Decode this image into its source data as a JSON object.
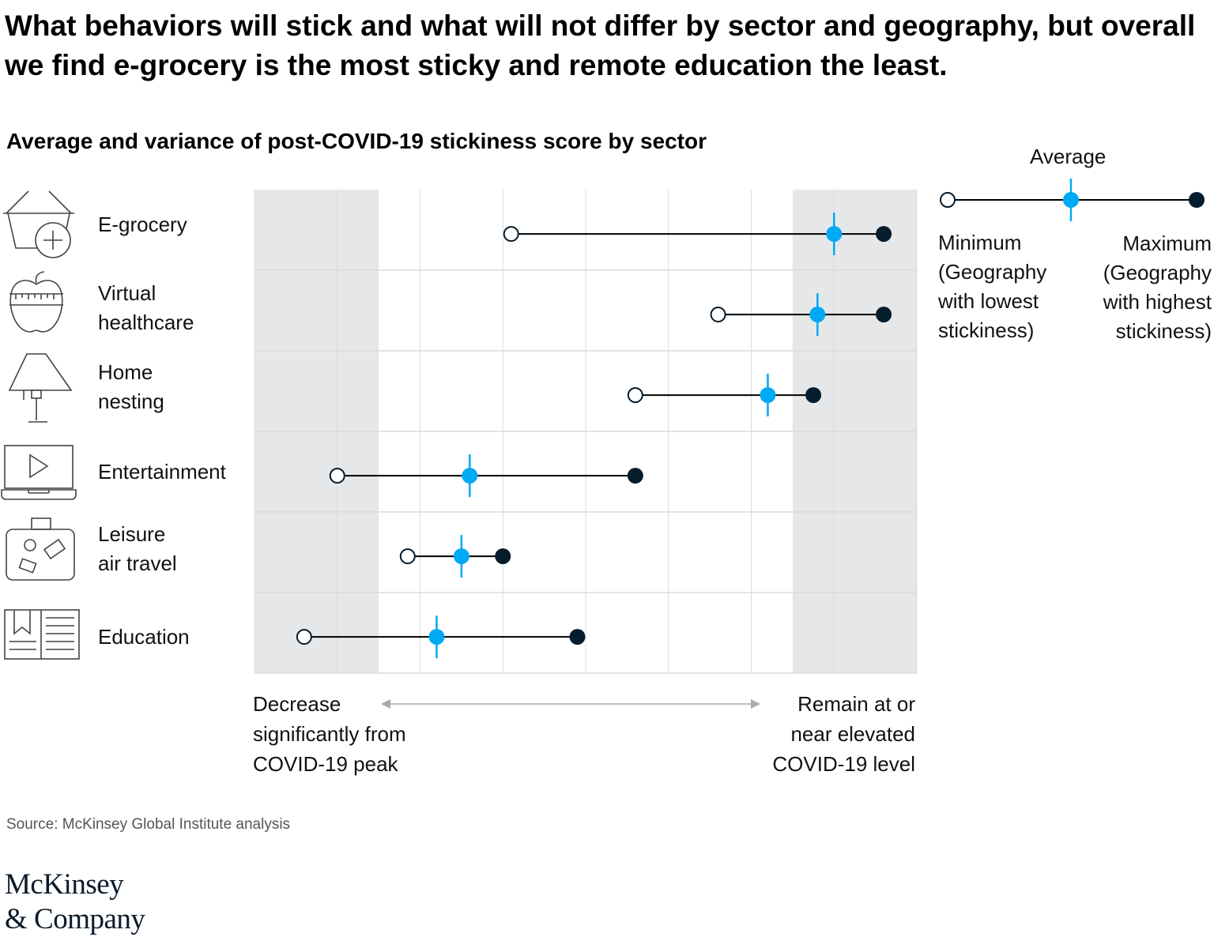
{
  "headline": "What behaviors will stick and what will not differ by sector and geography, but overall we find e-grocery is the most sticky and remote education the least.",
  "chart_data": {
    "type": "dot-range",
    "title": "Average and variance of post-COVID-19 stickiness score by sector",
    "categories": [
      "E-grocery",
      "Virtual healthcare",
      "Home nesting",
      "Entertainment",
      "Leisure air travel",
      "Education"
    ],
    "category_lines": [
      [
        "E-grocery"
      ],
      [
        "Virtual",
        "healthcare"
      ],
      [
        "Home",
        "nesting"
      ],
      [
        "Entertainment"
      ],
      [
        "Leisure",
        "air travel"
      ],
      [
        "Education"
      ]
    ],
    "series": [
      {
        "name": "Minimum (Geography with lowest stickiness)",
        "values": [
          3.1,
          5.6,
          4.6,
          1.0,
          1.85,
          0.6
        ]
      },
      {
        "name": "Average",
        "values": [
          7.0,
          6.8,
          6.2,
          2.6,
          2.5,
          2.2
        ]
      },
      {
        "name": "Maximum (Geography with highest stickiness)",
        "values": [
          7.6,
          7.6,
          6.75,
          4.6,
          3.0,
          3.9
        ]
      }
    ],
    "xlim": [
      0,
      8
    ],
    "xlabel_left": [
      "Decrease",
      "significantly from",
      "COVID-19 peak"
    ],
    "xlabel_right": [
      "Remain at or",
      "near elevated",
      "COVID-19 level"
    ],
    "shaded_bands": [
      [
        0,
        1.5
      ],
      [
        6.5,
        8
      ]
    ],
    "grid": true
  },
  "legend": {
    "average_label": "Average",
    "min_lines": [
      "Minimum",
      "(Geography",
      "with lowest",
      "stickiness)"
    ],
    "max_lines": [
      "Maximum",
      "(Geography",
      "with highest",
      "stickiness)"
    ]
  },
  "source": "Source: McKinsey Global Institute analysis",
  "logo_lines": [
    "McKinsey",
    "& Company"
  ],
  "colors": {
    "band": "#e6e7e9",
    "grid": "#dcdcdc",
    "average": "#00a9f4",
    "max": "#051c2c",
    "line": "#000000",
    "axis_arrow": "#aaaaaa"
  },
  "icons": [
    "basket-icon",
    "apple-icon",
    "lamp-icon",
    "laptop-play-icon",
    "suitcase-icon",
    "book-icon"
  ]
}
